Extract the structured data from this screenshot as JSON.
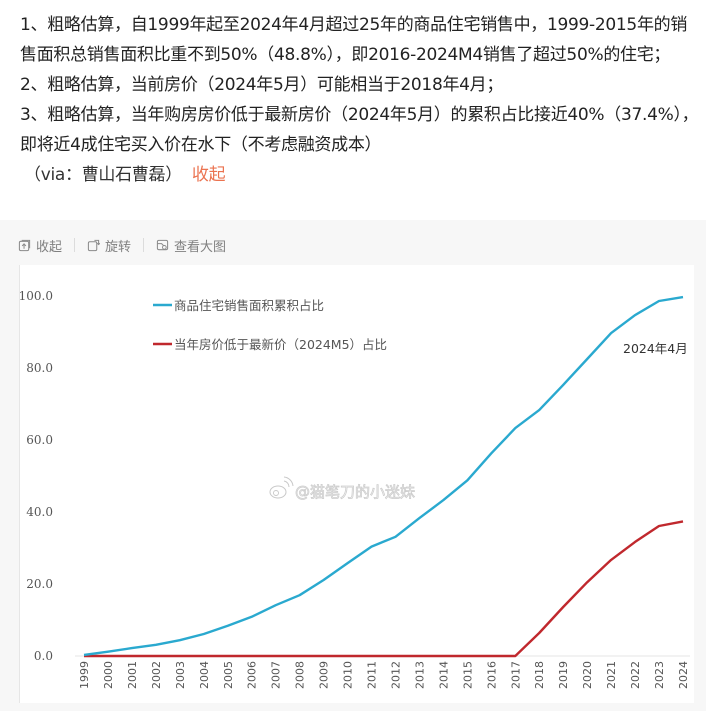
{
  "post": {
    "paragraphs": [
      "1、粗略估算，自1999年起至2024年4月超过25年的商品住宅销售中，1999-2015年的销售面积总销售面积比重不到50%（48.8%），即2016-2024M4销售了超过50%的住宅；",
      "2、粗略估算，当前房价（2024年5月）可能相当于2018年4月；",
      "3、粗略估算，当年购房房价低于最新房价（2024年5月）的累积占比接近40%（37.4%），即将近4成住宅买入价在水下（不考虑融资成本）"
    ],
    "via": "（via：曹山石曹磊）",
    "collapse_link": "收起"
  },
  "toolbar": {
    "collapse": {
      "label": "收起",
      "icon": "collapse-icon"
    },
    "rotate": {
      "label": "旋转",
      "icon": "rotate-icon"
    },
    "view_large": {
      "label": "查看大图",
      "icon": "view-large-image-icon"
    }
  },
  "watermark": "@猫笔刀的小迷妹",
  "colors": {
    "series_cumulative": "#2aa9cf",
    "series_underwater": "#c0282d",
    "link_orange": "#eb7350",
    "toolbar_gray": "#808080"
  },
  "chart_data": {
    "type": "line",
    "title": "",
    "xlabel": "",
    "ylabel": "",
    "ylim": [
      0,
      100
    ],
    "yticks": [
      "0.0",
      "20.0",
      "40.0",
      "60.0",
      "80.0",
      "100.0"
    ],
    "grid": false,
    "legend_position": "upper-left-inside",
    "categories": [
      "1999",
      "2000",
      "2001",
      "2002",
      "2003",
      "2004",
      "2005",
      "2006",
      "2007",
      "2008",
      "2009",
      "2010",
      "2011",
      "2012",
      "2013",
      "2014",
      "2015",
      "2016",
      "2017",
      "2018",
      "2019",
      "2020",
      "2021",
      "2022",
      "2023",
      "2024"
    ],
    "series": [
      {
        "name": "商品住宅销售面积累积占比",
        "color": "#2aa9cf",
        "values": [
          0.3,
          1.2,
          2.2,
          3.1,
          4.4,
          6.1,
          8.4,
          10.9,
          14.1,
          16.9,
          21.1,
          25.8,
          30.4,
          33.1,
          38.3,
          43.3,
          48.8,
          56.3,
          63.3,
          68.3,
          75.3,
          82.5,
          89.7,
          94.7,
          98.6,
          99.7
        ]
      },
      {
        "name": "当年房价低于最新价（2024M5）占比",
        "color": "#c0282d",
        "values": [
          0,
          0,
          0,
          0,
          0,
          0,
          0,
          0,
          0,
          0,
          0,
          0,
          0,
          0,
          0,
          0,
          0,
          0,
          0,
          6.4,
          13.6,
          20.5,
          26.7,
          31.7,
          36.1,
          37.4
        ]
      }
    ],
    "annotations": [
      {
        "text": "2024年4月",
        "near": "2024",
        "series": 0
      }
    ]
  }
}
